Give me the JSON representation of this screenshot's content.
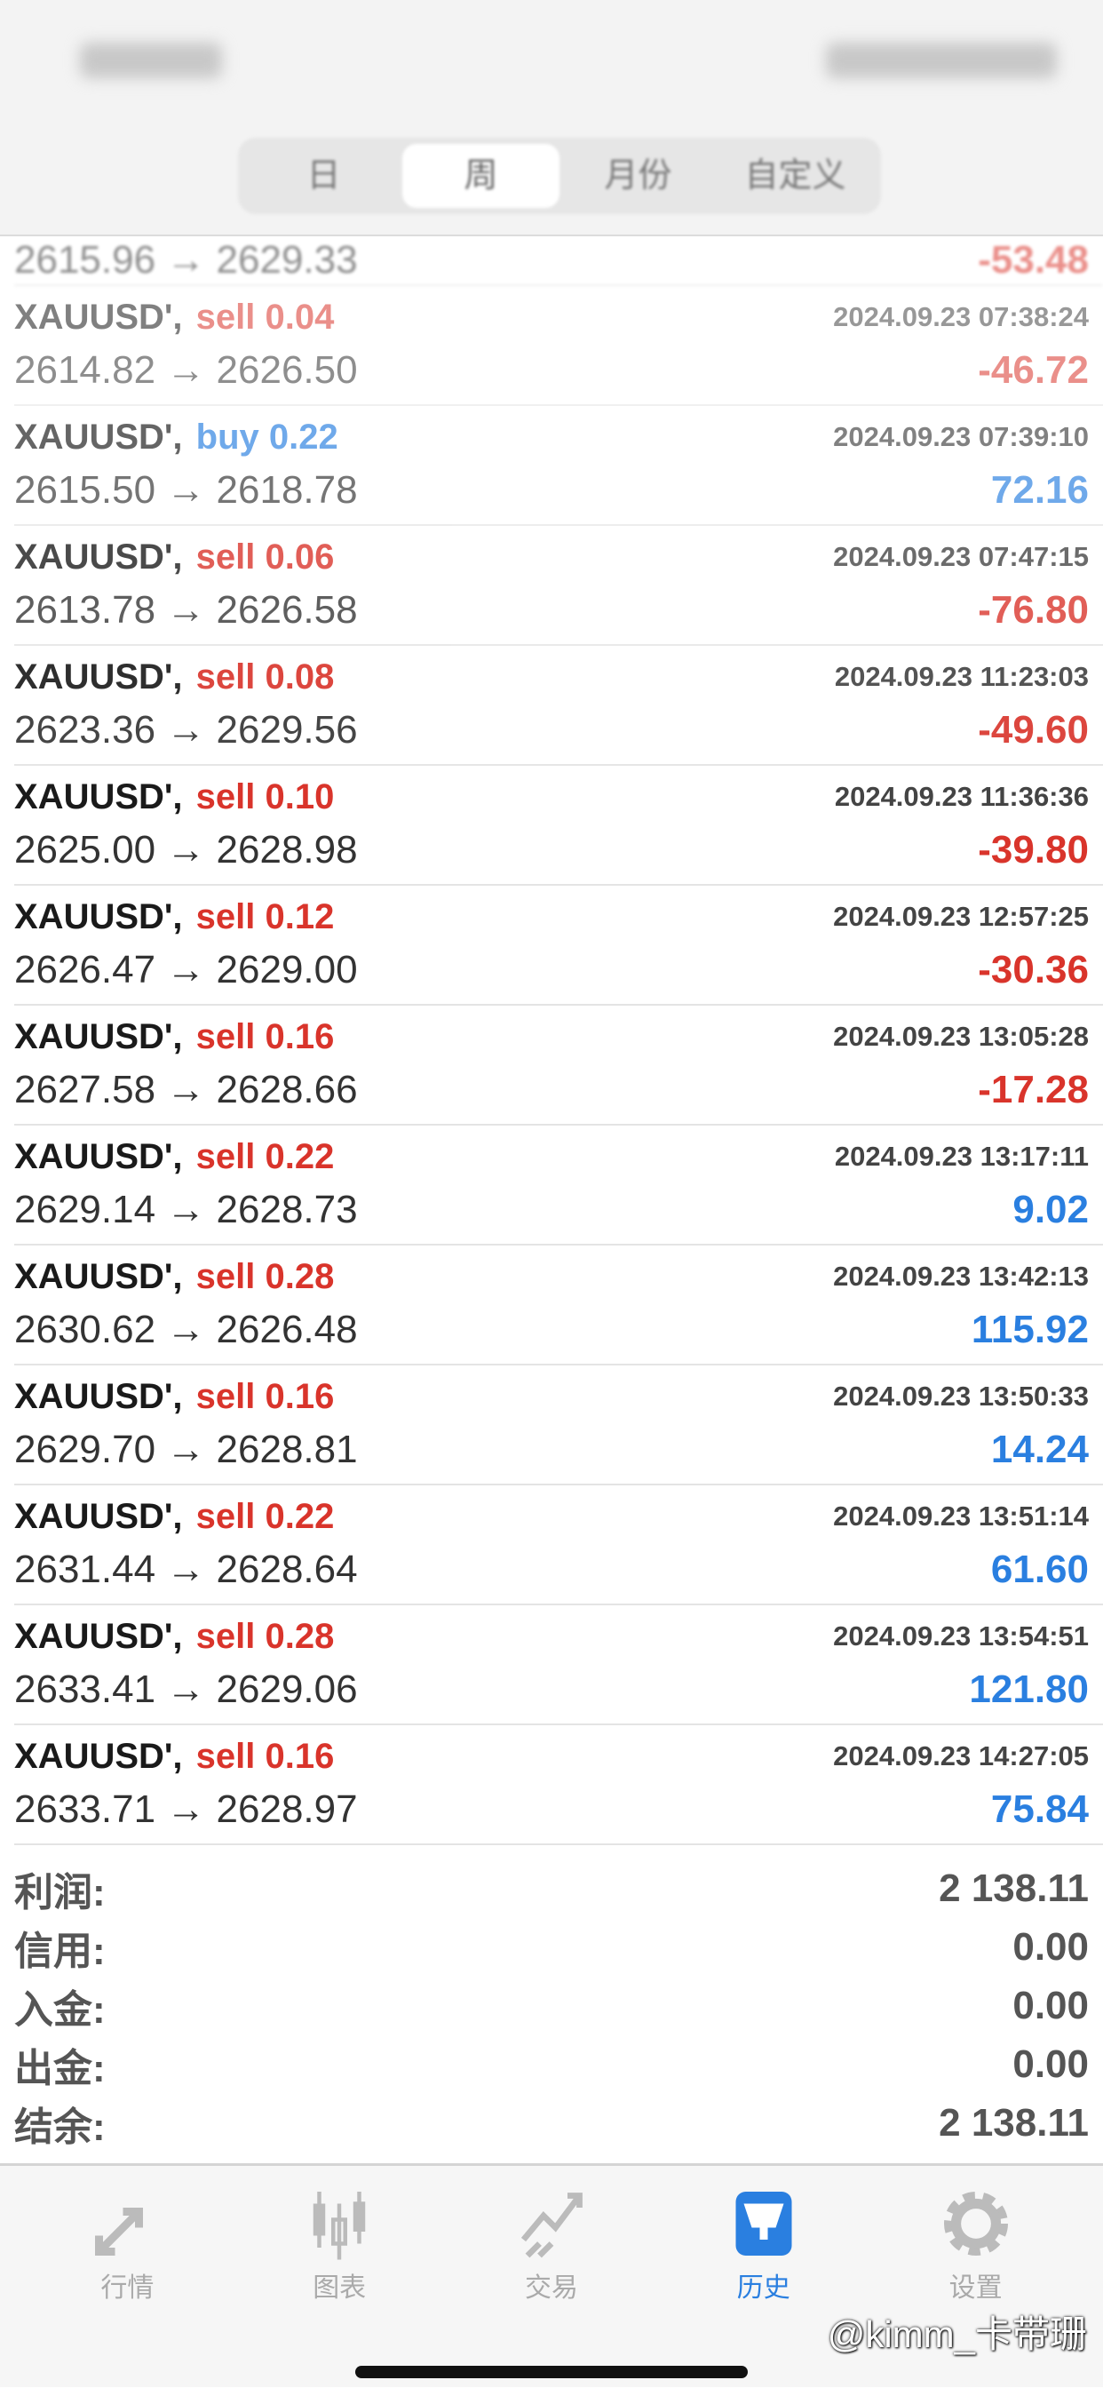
{
  "period_tabs": [
    {
      "label": "日"
    },
    {
      "label": "周",
      "active": true
    },
    {
      "label": "月份"
    },
    {
      "label": "自定义"
    }
  ],
  "partial_row": {
    "open": "2615.96",
    "close": "2629.33",
    "profit": "-53.48"
  },
  "deals": [
    {
      "symbol": "XAUUSD'",
      "side": "sell",
      "volume": "0.04",
      "time": "2024.09.23 07:38:24",
      "open": "2614.82",
      "close": "2626.50",
      "profit": "-46.72"
    },
    {
      "symbol": "XAUUSD'",
      "side": "buy",
      "volume": "0.22",
      "time": "2024.09.23 07:39:10",
      "open": "2615.50",
      "close": "2618.78",
      "profit": "72.16"
    },
    {
      "symbol": "XAUUSD'",
      "side": "sell",
      "volume": "0.06",
      "time": "2024.09.23 07:47:15",
      "open": "2613.78",
      "close": "2626.58",
      "profit": "-76.80"
    },
    {
      "symbol": "XAUUSD'",
      "side": "sell",
      "volume": "0.08",
      "time": "2024.09.23 11:23:03",
      "open": "2623.36",
      "close": "2629.56",
      "profit": "-49.60"
    },
    {
      "symbol": "XAUUSD'",
      "side": "sell",
      "volume": "0.10",
      "time": "2024.09.23 11:36:36",
      "open": "2625.00",
      "close": "2628.98",
      "profit": "-39.80"
    },
    {
      "symbol": "XAUUSD'",
      "side": "sell",
      "volume": "0.12",
      "time": "2024.09.23 12:57:25",
      "open": "2626.47",
      "close": "2629.00",
      "profit": "-30.36"
    },
    {
      "symbol": "XAUUSD'",
      "side": "sell",
      "volume": "0.16",
      "time": "2024.09.23 13:05:28",
      "open": "2627.58",
      "close": "2628.66",
      "profit": "-17.28"
    },
    {
      "symbol": "XAUUSD'",
      "side": "sell",
      "volume": "0.22",
      "time": "2024.09.23 13:17:11",
      "open": "2629.14",
      "close": "2628.73",
      "profit": "9.02"
    },
    {
      "symbol": "XAUUSD'",
      "side": "sell",
      "volume": "0.28",
      "time": "2024.09.23 13:42:13",
      "open": "2630.62",
      "close": "2626.48",
      "profit": "115.92"
    },
    {
      "symbol": "XAUUSD'",
      "side": "sell",
      "volume": "0.16",
      "time": "2024.09.23 13:50:33",
      "open": "2629.70",
      "close": "2628.81",
      "profit": "14.24"
    },
    {
      "symbol": "XAUUSD'",
      "side": "sell",
      "volume": "0.22",
      "time": "2024.09.23 13:51:14",
      "open": "2631.44",
      "close": "2628.64",
      "profit": "61.60"
    },
    {
      "symbol": "XAUUSD'",
      "side": "sell",
      "volume": "0.28",
      "time": "2024.09.23 13:54:51",
      "open": "2633.41",
      "close": "2629.06",
      "profit": "121.80"
    },
    {
      "symbol": "XAUUSD'",
      "side": "sell",
      "volume": "0.16",
      "time": "2024.09.23 14:27:05",
      "open": "2633.71",
      "close": "2628.97",
      "profit": "75.84"
    }
  ],
  "arrow": "→",
  "summary": [
    {
      "label": "利润:",
      "value": "2 138.11"
    },
    {
      "label": "信用:",
      "value": "0.00"
    },
    {
      "label": "入金:",
      "value": "0.00"
    },
    {
      "label": "出金:",
      "value": "0.00"
    },
    {
      "label": "结余:",
      "value": "2 138.11"
    }
  ],
  "tabbar": [
    {
      "label": "行情",
      "icon": "quotes-arrows-icon"
    },
    {
      "label": "图表",
      "icon": "candlestick-chart-icon"
    },
    {
      "label": "交易",
      "icon": "trade-trend-icon"
    },
    {
      "label": "历史",
      "icon": "history-inbox-icon",
      "active": true
    },
    {
      "label": "设置",
      "icon": "gear-icon"
    }
  ],
  "colors": {
    "sell": "#d9342b",
    "buy": "#2a7fe0",
    "active_tab": "#2a7fe0"
  },
  "watermark": "@kimm_卡带珊"
}
